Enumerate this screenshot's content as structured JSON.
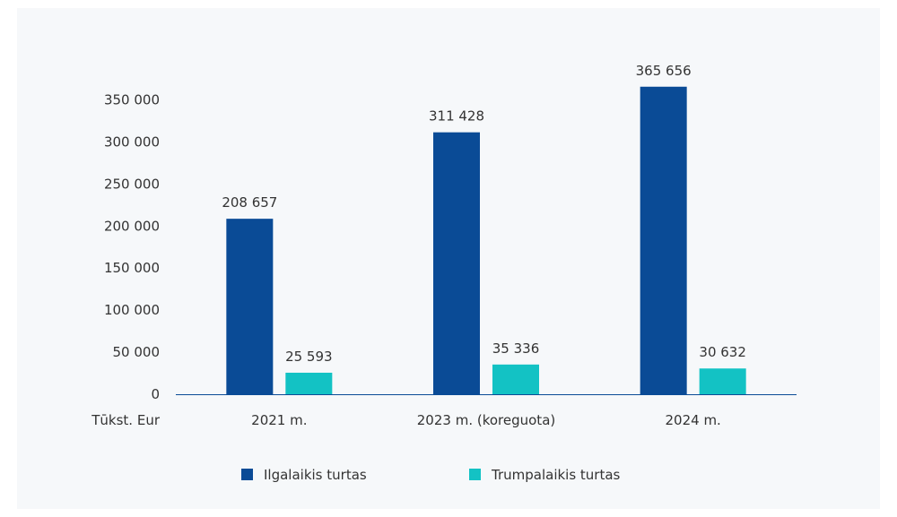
{
  "chart_data": {
    "type": "bar",
    "unit_label": "Tūkst. Eur",
    "categories": [
      "2021 m.",
      "2023 m. (koreguota)",
      "2024 m."
    ],
    "series": [
      {
        "name": "Ilgalaikis turtas",
        "color": "#0a4b96",
        "values": [
          208657,
          311428,
          365656
        ],
        "labels": [
          "208 657",
          "311 428",
          "365 656"
        ]
      },
      {
        "name": "Trumpalaikis turtas",
        "color": "#13c2c4",
        "values": [
          25593,
          35336,
          30632
        ],
        "labels": [
          "25 593",
          "35 336",
          "30 632"
        ]
      }
    ],
    "y_ticks": [
      {
        "value": 0,
        "label": "0"
      },
      {
        "value": 50000,
        "label": "50 000"
      },
      {
        "value": 100000,
        "label": "100 000"
      },
      {
        "value": 150000,
        "label": "150 000"
      },
      {
        "value": 200000,
        "label": "200 000"
      },
      {
        "value": 250000,
        "label": "250 000"
      },
      {
        "value": 300000,
        "label": "300 000"
      },
      {
        "value": 350000,
        "label": "350 000"
      }
    ],
    "ylim": [
      0,
      375000
    ],
    "grid": false,
    "legend_position": "bottom",
    "axis_color": "#0a4b96"
  }
}
